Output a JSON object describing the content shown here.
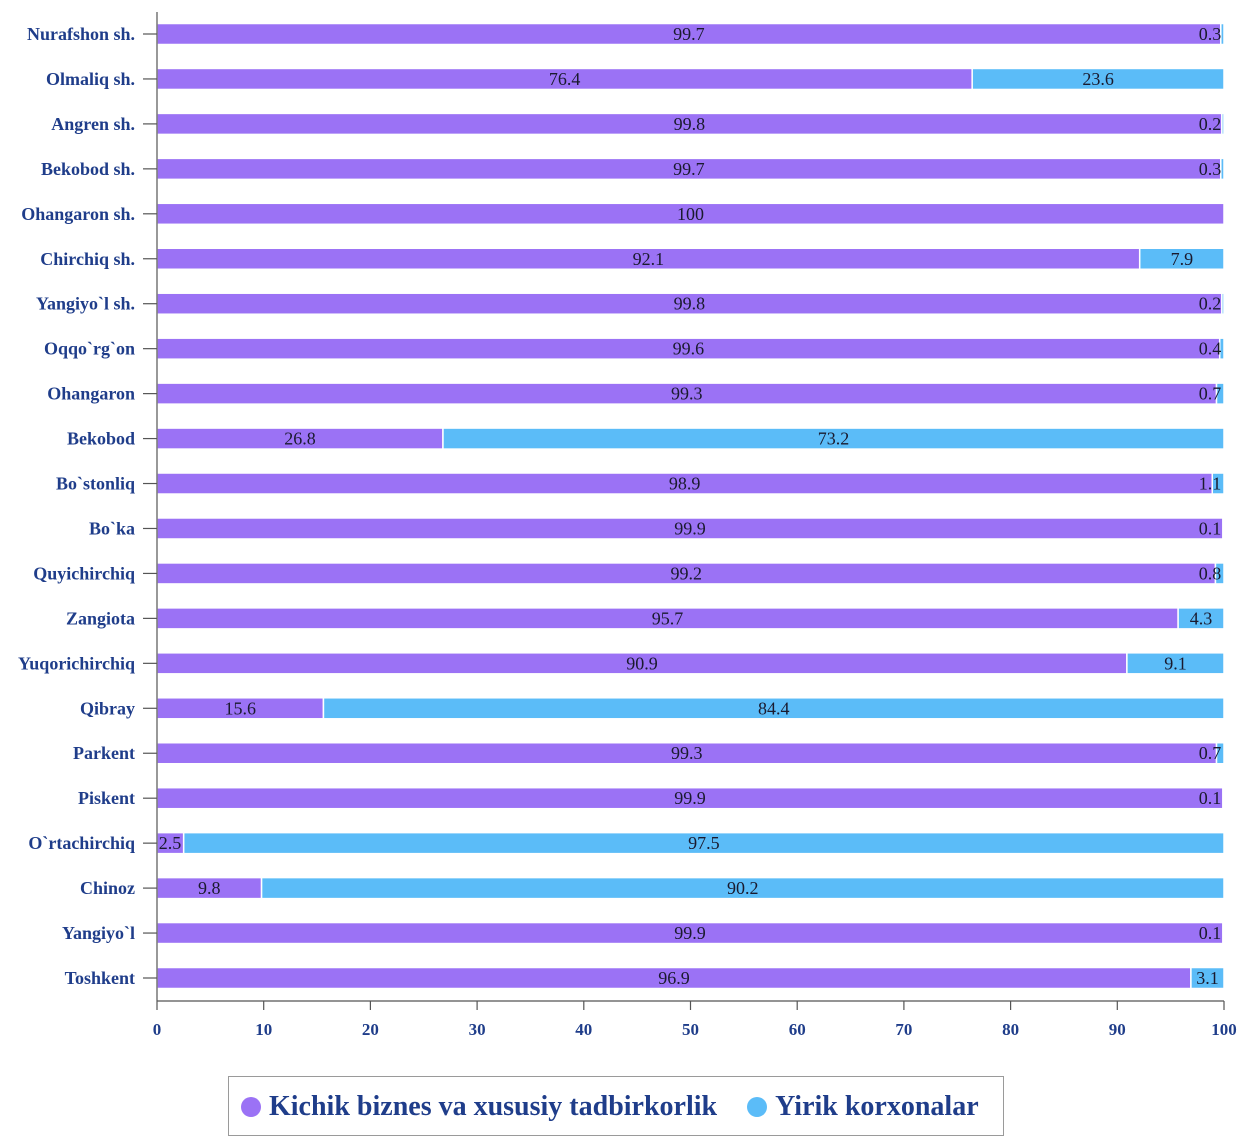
{
  "chart_data": {
    "type": "bar",
    "orientation": "horizontal",
    "stacked": true,
    "categories": [
      "Nurafshon sh.",
      "Olmaliq sh.",
      "Angren sh.",
      "Bekobod sh.",
      "Ohangaron sh.",
      "Chirchiq sh.",
      "Yangiyo`l sh.",
      "Oqqo`rg`on",
      "Ohangaron",
      "Bekobod",
      "Bo`stonliq",
      "Bo`ka",
      "Quyichirchiq",
      "Zangiota",
      "Yuqorichirchiq",
      "Qibray",
      "Parkent",
      "Piskent",
      "O`rtachirchiq",
      "Chinoz",
      "Yangiyo`l",
      "Toshkent"
    ],
    "series": [
      {
        "name": "Kichik biznes va xususiy tadbirkorlik",
        "color": "#9b72f5",
        "values": [
          99.7,
          76.4,
          99.8,
          99.7,
          100,
          92.1,
          99.8,
          99.6,
          99.3,
          26.8,
          98.9,
          99.9,
          99.2,
          95.7,
          90.9,
          15.6,
          99.3,
          99.9,
          2.5,
          9.8,
          99.9,
          96.9
        ],
        "labels": [
          "99.7",
          "76.4",
          "99.8",
          "99.7",
          "100",
          "92.1",
          "99.8",
          "99.6",
          "99.3",
          "26.8",
          "98.9",
          "99.9",
          "99.2",
          "95.7",
          "90.9",
          "15.6",
          "99.3",
          "99.9",
          "2.5",
          "9.8",
          "99.9",
          "96.9"
        ]
      },
      {
        "name": "Yirik korxonalar",
        "color": "#5bbcf8",
        "values": [
          0.3,
          23.6,
          0.2,
          0.3,
          0,
          7.9,
          0.2,
          0.4,
          0.7,
          73.2,
          1.1,
          0.1,
          0.8,
          4.3,
          9.1,
          84.4,
          0.7,
          0.1,
          97.5,
          90.2,
          0.1,
          3.1
        ],
        "labels": [
          "0.3",
          "23.6",
          "0.2",
          "0.3",
          "",
          "7.9",
          "0.2",
          "0.4",
          "0.7",
          "73.2",
          "1.1",
          "0.1",
          "0.8",
          "4.3",
          "9.1",
          "84.4",
          "0.7",
          "0.1",
          "97.5",
          "90.2",
          "0.1",
          "3.1"
        ]
      }
    ],
    "xlim": [
      0,
      100
    ],
    "xticks": [
      0,
      10,
      20,
      30,
      40,
      50,
      60,
      70,
      80,
      90,
      100
    ],
    "xtick_labels": [
      "0",
      "10",
      "20",
      "30",
      "40",
      "50",
      "60",
      "70",
      "80",
      "90",
      "100"
    ],
    "grid": false,
    "legend_position": "bottom",
    "title": "",
    "xlabel": "",
    "ylabel": ""
  },
  "legend": {
    "items": [
      {
        "label": "Kichik biznes va xususiy tadbirkorlik",
        "color": "#9b72f5"
      },
      {
        "label": "Yirik korxonalar",
        "color": "#5bbcf8"
      }
    ]
  }
}
